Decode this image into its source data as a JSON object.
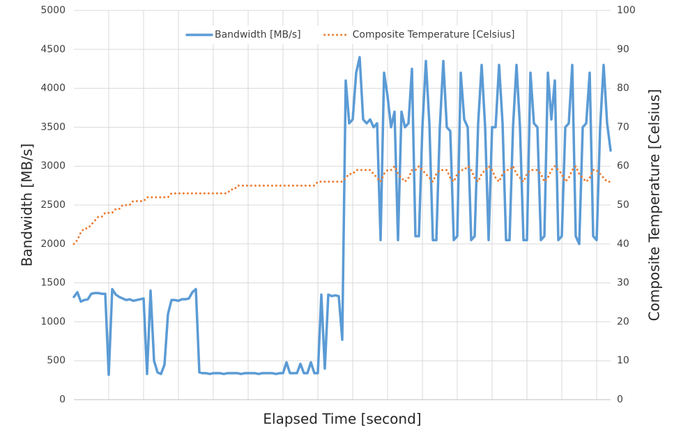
{
  "chart_data": {
    "type": "line",
    "x_label": "Elapsed Time [second]",
    "y_label": "Bandwidth [MB/s]",
    "y2_label": "Composite Temperature [Celsius]",
    "categories": [
      null,
      null,
      null,
      null,
      null,
      null,
      null,
      null,
      null,
      null,
      null,
      null,
      null,
      null,
      null,
      null,
      null,
      null,
      null,
      null,
      null,
      null,
      null,
      null,
      null,
      null,
      null,
      null,
      null,
      null,
      null,
      null,
      null,
      null,
      null,
      null,
      null,
      null,
      null,
      null,
      null,
      null,
      null,
      null,
      null,
      null,
      null,
      null,
      null,
      null,
      null,
      null,
      null,
      null,
      null,
      null,
      null,
      null,
      null,
      null,
      null,
      null,
      null,
      null,
      null,
      null,
      null,
      null,
      null,
      null,
      null,
      null,
      null,
      null,
      null,
      null,
      null,
      null,
      null,
      null,
      null,
      null,
      null,
      null,
      null,
      null,
      null,
      null,
      null,
      null,
      null,
      null,
      null,
      null,
      null,
      null,
      null,
      null,
      null,
      null,
      null,
      null,
      null,
      null,
      null,
      null,
      null,
      null,
      null,
      null,
      null,
      null,
      null,
      null,
      null,
      null,
      null,
      null,
      null,
      null,
      null,
      null,
      null,
      null,
      null,
      null,
      null,
      null,
      null,
      null,
      null,
      null,
      null,
      null,
      null,
      null,
      null,
      null,
      null,
      null,
      null,
      null,
      null,
      null,
      null,
      null,
      null,
      null,
      null,
      null,
      null,
      null,
      null,
      null,
      null
    ],
    "series": [
      {
        "name": "Bandwidth [MB/s]",
        "color": "#5b9bd5",
        "values": [
          1320,
          1380,
          1260,
          1280,
          1290,
          1360,
          1370,
          1370,
          1360,
          1360,
          320,
          1420,
          1350,
          1320,
          1300,
          1280,
          1290,
          1270,
          1280,
          1290,
          1300,
          330,
          1400,
          500,
          350,
          330,
          450,
          1100,
          1280,
          1280,
          1270,
          1290,
          1290,
          1300,
          1380,
          1420,
          350,
          340,
          340,
          330,
          340,
          340,
          340,
          330,
          340,
          340,
          340,
          340,
          330,
          340,
          340,
          340,
          340,
          330,
          340,
          340,
          340,
          340,
          330,
          340,
          340,
          480,
          340,
          340,
          340,
          460,
          340,
          340,
          480,
          340,
          340,
          1350,
          400,
          1350,
          1330,
          1340,
          1330,
          770,
          4100,
          3550,
          3600,
          4200,
          4400,
          3600,
          3550,
          3600,
          3500,
          3550,
          2050,
          4200,
          3900,
          3500,
          3700,
          2050,
          3700,
          3500,
          3550,
          4250,
          2100,
          2100,
          3500,
          4350,
          3550,
          2050,
          2050,
          3500,
          4350,
          3500,
          3450,
          2050,
          2100,
          4200,
          3600,
          3500,
          2050,
          2100,
          3550,
          4300,
          3500,
          2050,
          3500,
          3500,
          4300,
          3550,
          2050,
          2050,
          3500,
          4300,
          3500,
          2050,
          2050,
          4200,
          3550,
          3500,
          2050,
          2100,
          4200,
          3600,
          4100,
          2050,
          2100,
          3500,
          3550,
          4300,
          2100,
          2000,
          3500,
          3550,
          4200,
          2100,
          2050,
          3500,
          4300,
          3550,
          3200
        ]
      },
      {
        "name": "Composite Temperature [Celsius]",
        "color": "#ed7d31",
        "axis": "y2",
        "dotted": true,
        "values": [
          40,
          41,
          43,
          44,
          44,
          45,
          46,
          47,
          47,
          48,
          48,
          48,
          49,
          49,
          50,
          50,
          50,
          51,
          51,
          51,
          51,
          52,
          52,
          52,
          52,
          52,
          52,
          52,
          53,
          53,
          53,
          53,
          53,
          53,
          53,
          53,
          53,
          53,
          53,
          53,
          53,
          53,
          53,
          53,
          53,
          54,
          54,
          55,
          55,
          55,
          55,
          55,
          55,
          55,
          55,
          55,
          55,
          55,
          55,
          55,
          55,
          55,
          55,
          55,
          55,
          55,
          55,
          55,
          55,
          55,
          56,
          56,
          56,
          56,
          56,
          56,
          56,
          56,
          57,
          58,
          58,
          59,
          59,
          59,
          59,
          59,
          58,
          57,
          56,
          58,
          59,
          59,
          60,
          58,
          57,
          56,
          57,
          59,
          59,
          60,
          59,
          58,
          57,
          56,
          58,
          59,
          59,
          59,
          57,
          56,
          58,
          59,
          59,
          60,
          59,
          57,
          56,
          58,
          59,
          60,
          59,
          57,
          56,
          58,
          59,
          59,
          60,
          58,
          57,
          56,
          58,
          59,
          59,
          59,
          58,
          56,
          57,
          59,
          60,
          59,
          58,
          56,
          57,
          59,
          60,
          58,
          57,
          56,
          57,
          59,
          59,
          58,
          57,
          56,
          56
        ]
      }
    ],
    "ylim": [
      0,
      5000
    ],
    "yticks": [
      0,
      500,
      1000,
      1500,
      2000,
      2500,
      3000,
      3500,
      4000,
      4500,
      5000
    ],
    "y2lim": [
      0,
      100
    ],
    "y2ticks": [
      0,
      10,
      20,
      30,
      40,
      50,
      60,
      70,
      80,
      90,
      100
    ],
    "grid": true,
    "legend": "top"
  }
}
